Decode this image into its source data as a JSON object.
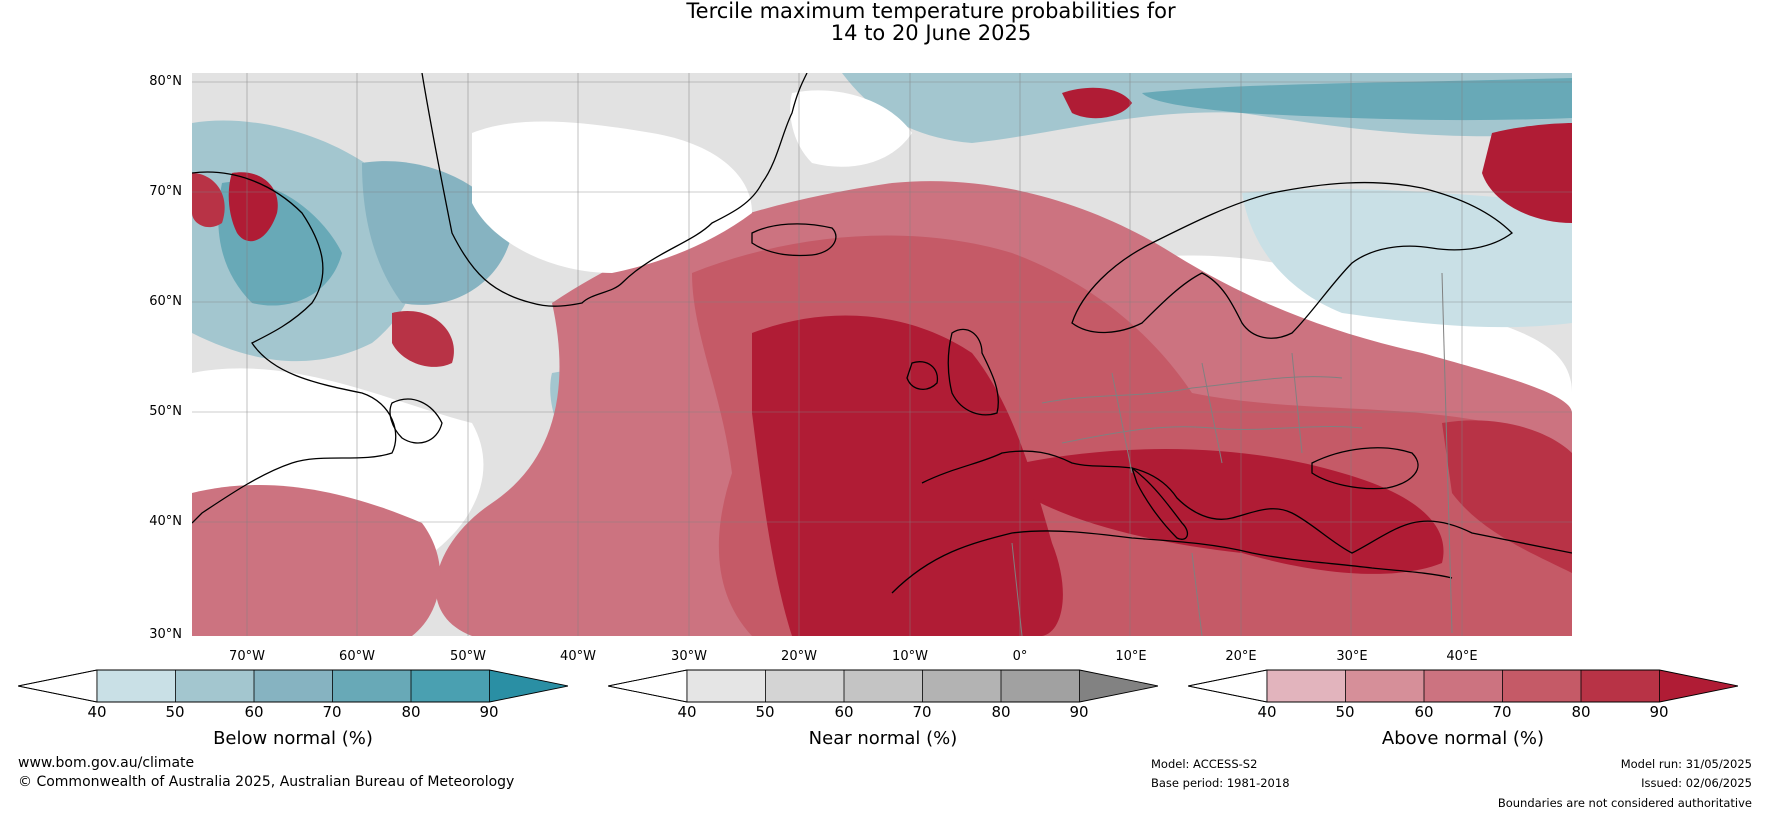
{
  "title": {
    "line1": "Tercile maximum temperature probabilities for",
    "line2": "14 to 20 June 2025"
  },
  "map": {
    "lat_labels": [
      "80°N",
      "70°N",
      "60°N",
      "50°N",
      "40°N",
      "30°N"
    ],
    "lon_labels": [
      "70°W",
      "60°W",
      "50°W",
      "40°W",
      "30°W",
      "20°W",
      "10°W",
      "0°",
      "10°E",
      "20°E",
      "30°E",
      "40°E"
    ],
    "lat_range": [
      30,
      81
    ],
    "lon_range": [
      -75,
      50
    ],
    "colors": {
      "land_outline": "#000000",
      "borders": "#808080",
      "grid": "#808080"
    }
  },
  "colorbars": [
    {
      "title": "Below normal (%)",
      "ticks": [
        "40",
        "50",
        "60",
        "70",
        "80",
        "90"
      ],
      "colors": [
        "#ffffff",
        "#c9e0e6",
        "#a3c6cf",
        "#86b3c1",
        "#68a9b7",
        "#4aa0b1",
        "#2a8fa4"
      ]
    },
    {
      "title": "Near normal (%)",
      "ticks": [
        "40",
        "50",
        "60",
        "70",
        "80",
        "90"
      ],
      "colors": [
        "#ffffff",
        "#e5e5e5",
        "#d4d4d4",
        "#c4c4c4",
        "#b3b3b3",
        "#a1a1a1",
        "#828282"
      ]
    },
    {
      "title": "Above normal (%)",
      "ticks": [
        "40",
        "50",
        "60",
        "70",
        "80",
        "90"
      ],
      "colors": [
        "#ffffff",
        "#e2b4bd",
        "#d68f99",
        "#cc7380",
        "#c55a67",
        "#b83346",
        "#b01c35"
      ]
    }
  ],
  "footer": {
    "website": "www.bom.gov.au/climate",
    "copyright": "© Commonwealth of Australia 2025, Australian Bureau of Meteorology",
    "model": "Model: ACCESS-S2",
    "base_period": "Base period: 1981-2018",
    "model_run": "Model run: 31/05/2025",
    "issued": "Issued: 02/06/2025",
    "disclaimer": "Boundaries are not considered authoritative"
  }
}
